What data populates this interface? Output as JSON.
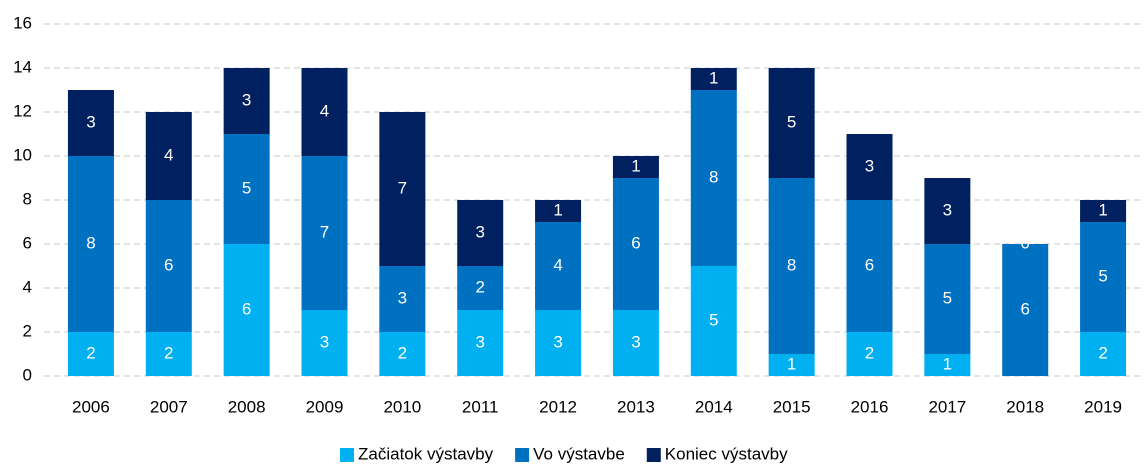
{
  "chart_data": {
    "type": "stacked_bar",
    "categories": [
      "2006",
      "2007",
      "2008",
      "2009",
      "2010",
      "2011",
      "2012",
      "2013",
      "2014",
      "2015",
      "2016",
      "2017",
      "2018",
      "2019"
    ],
    "series": [
      {
        "name": "Začiatok výstavby",
        "color": "#00b0f0",
        "values": [
          2,
          2,
          6,
          3,
          2,
          3,
          3,
          3,
          5,
          1,
          2,
          1,
          0,
          2
        ]
      },
      {
        "name": "Vo výstavbe",
        "color": "#0070c0",
        "values": [
          8,
          6,
          5,
          7,
          3,
          2,
          4,
          6,
          8,
          8,
          6,
          5,
          6,
          5
        ]
      },
      {
        "name": "Koniec výstavby",
        "color": "#002060",
        "values": [
          3,
          4,
          3,
          4,
          7,
          3,
          1,
          1,
          1,
          5,
          3,
          3,
          0,
          1
        ]
      }
    ],
    "ylim": [
      0,
      16
    ],
    "yticks": [
      0,
      2,
      4,
      6,
      8,
      10,
      12,
      14,
      16
    ],
    "grid": true,
    "legend": "bottom"
  }
}
